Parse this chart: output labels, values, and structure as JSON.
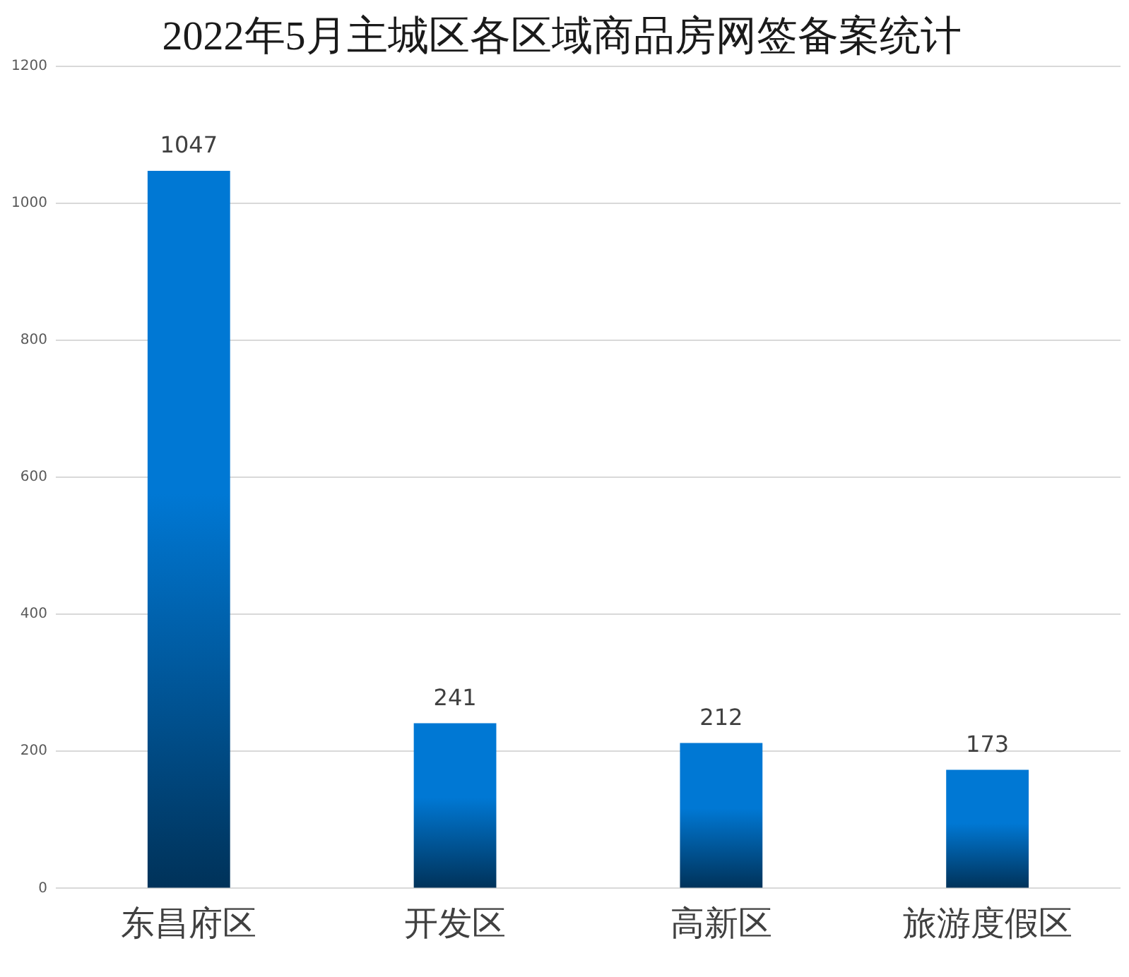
{
  "chart_data": {
    "type": "bar",
    "title": "2022年5月主城区各区域商品房网签备案统计",
    "categories": [
      "东昌府区",
      "开发区",
      "高新区",
      "旅游度假区"
    ],
    "values": [
      1047,
      241,
      212,
      173
    ],
    "color": "#0078d4",
    "ylim": [
      0,
      1200
    ],
    "yticks": [
      0,
      200,
      400,
      600,
      800,
      1000,
      1200
    ],
    "grid": "y",
    "data_labels": true
  }
}
